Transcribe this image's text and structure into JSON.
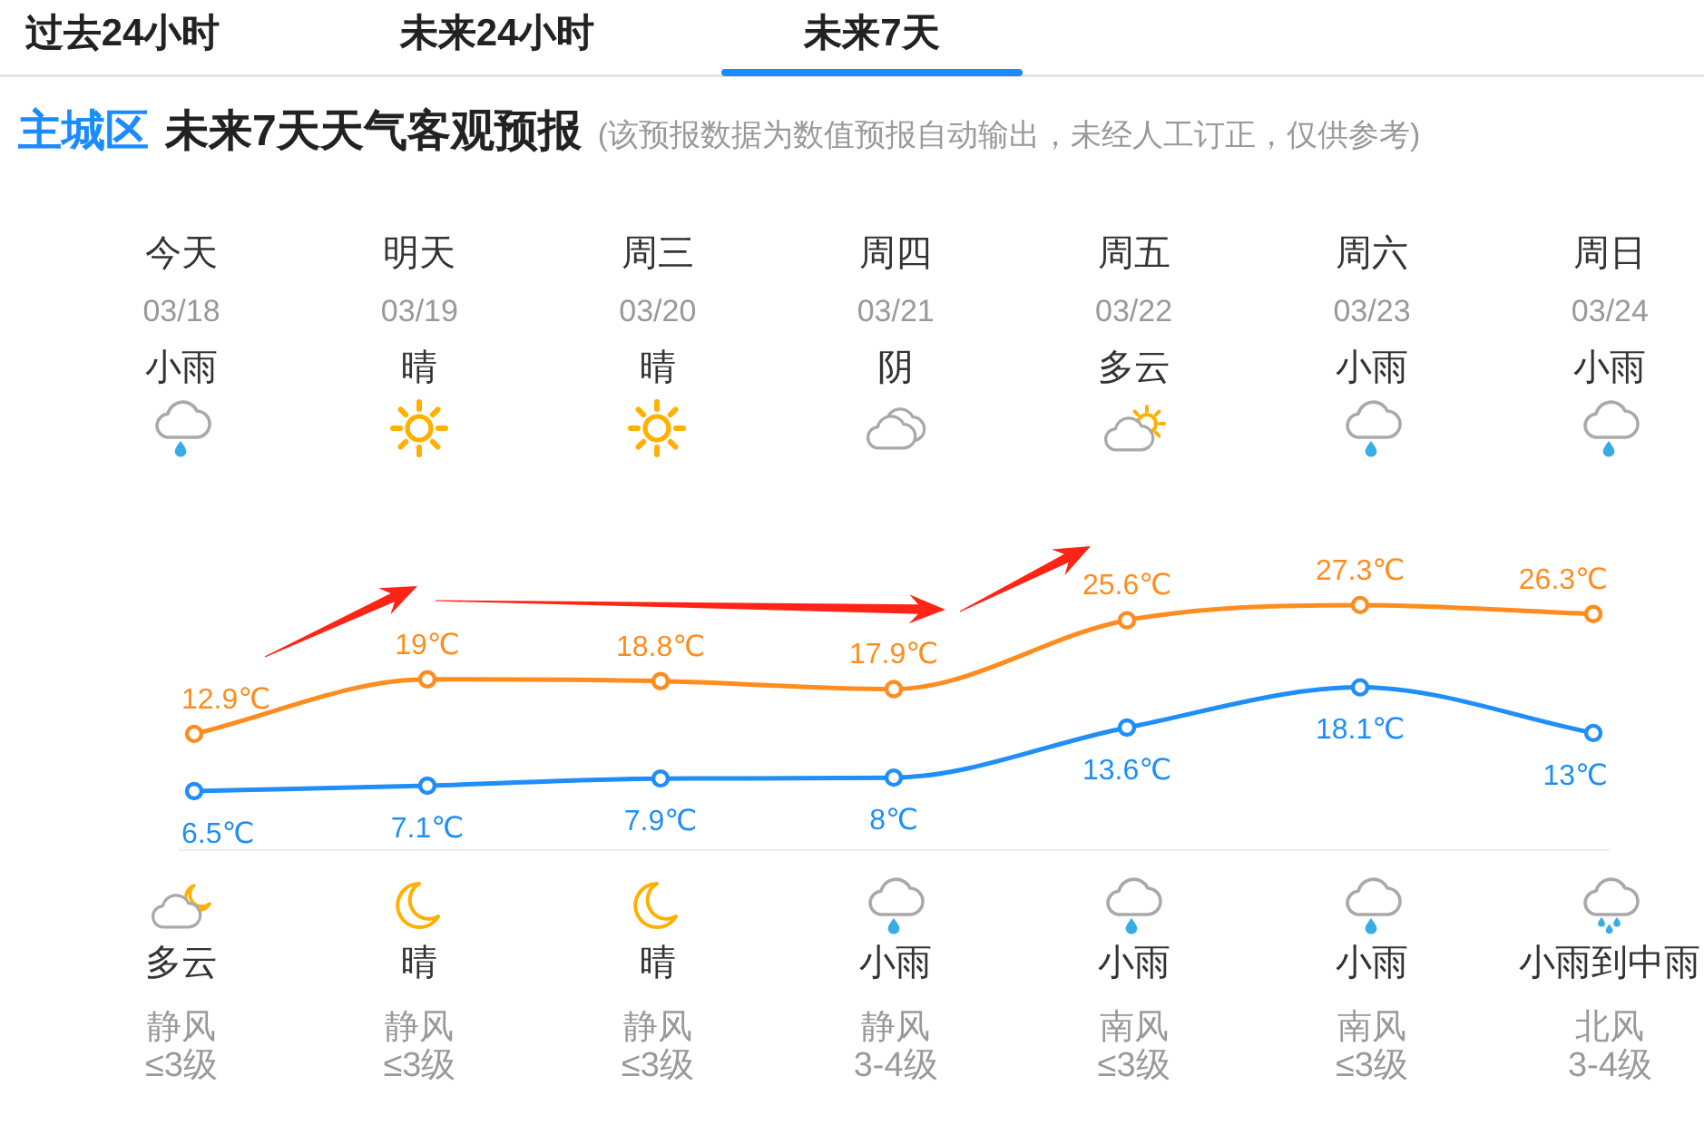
{
  "chart_data": {
    "type": "line",
    "title": "主城区",
    "subtitle": "未来7天天气客观预报",
    "annotations": [
      "过去24小时",
      "未来24小时",
      "未来7天",
      "(该预报数据为数值预报自动输出，未经人工订正，仅供参考)",
      "03/18",
      "03/19",
      "03/20",
      "03/21",
      "03/22",
      "03/23",
      "03/24",
      "小雨",
      "晴",
      "晴",
      "阴",
      "多云",
      "小雨",
      "小雨",
      "多云",
      "晴",
      "晴",
      "小雨",
      "小雨",
      "小雨",
      "小雨到中雨",
      "静风",
      "静风",
      "静风",
      "静风",
      "南风",
      "南风",
      "北风",
      "≤3级",
      "≤3级",
      "≤3级",
      "3-4级",
      "≤3级",
      "≤3级",
      "3-4级"
    ],
    "categories": [
      "今天",
      "明天",
      "周三",
      "周四",
      "周五",
      "周六",
      "周日"
    ],
    "series": [
      {
        "color": "#ff8c1f",
        "values": [
          12.9,
          19,
          18.8,
          17.9,
          25.6,
          27.3,
          26.3
        ],
        "value_labels": [
          "12.9℃",
          "19℃",
          "18.8℃",
          "17.9℃",
          "25.6℃",
          "27.3℃",
          "26.3℃"
        ]
      },
      {
        "color": "#1f8ef7",
        "values": [
          6.5,
          7.1,
          7.9,
          8,
          13.6,
          18.1,
          13
        ],
        "value_labels": [
          "6.5℃",
          "7.1℃",
          "7.9℃",
          "8℃",
          "13.6℃",
          "18.1℃",
          "13℃"
        ]
      }
    ],
    "marker": "circle"
  }
}
